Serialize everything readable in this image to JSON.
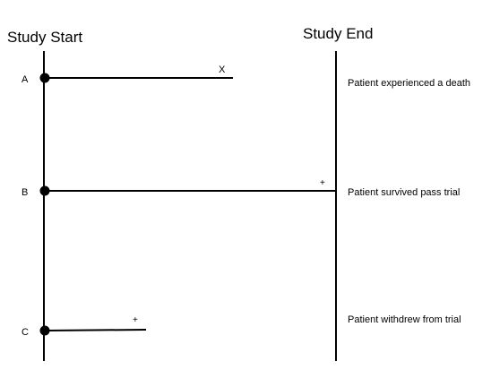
{
  "headers": {
    "start": "Study Start",
    "end": "Study End"
  },
  "patients": [
    {
      "id": "A",
      "end_marker": "X",
      "description": "Patient experienced a death"
    },
    {
      "id": "B",
      "end_marker": "+",
      "description": "Patient survived pass trial"
    },
    {
      "id": "C",
      "end_marker": "+",
      "description": "Patient withdrew from trial"
    }
  ]
}
